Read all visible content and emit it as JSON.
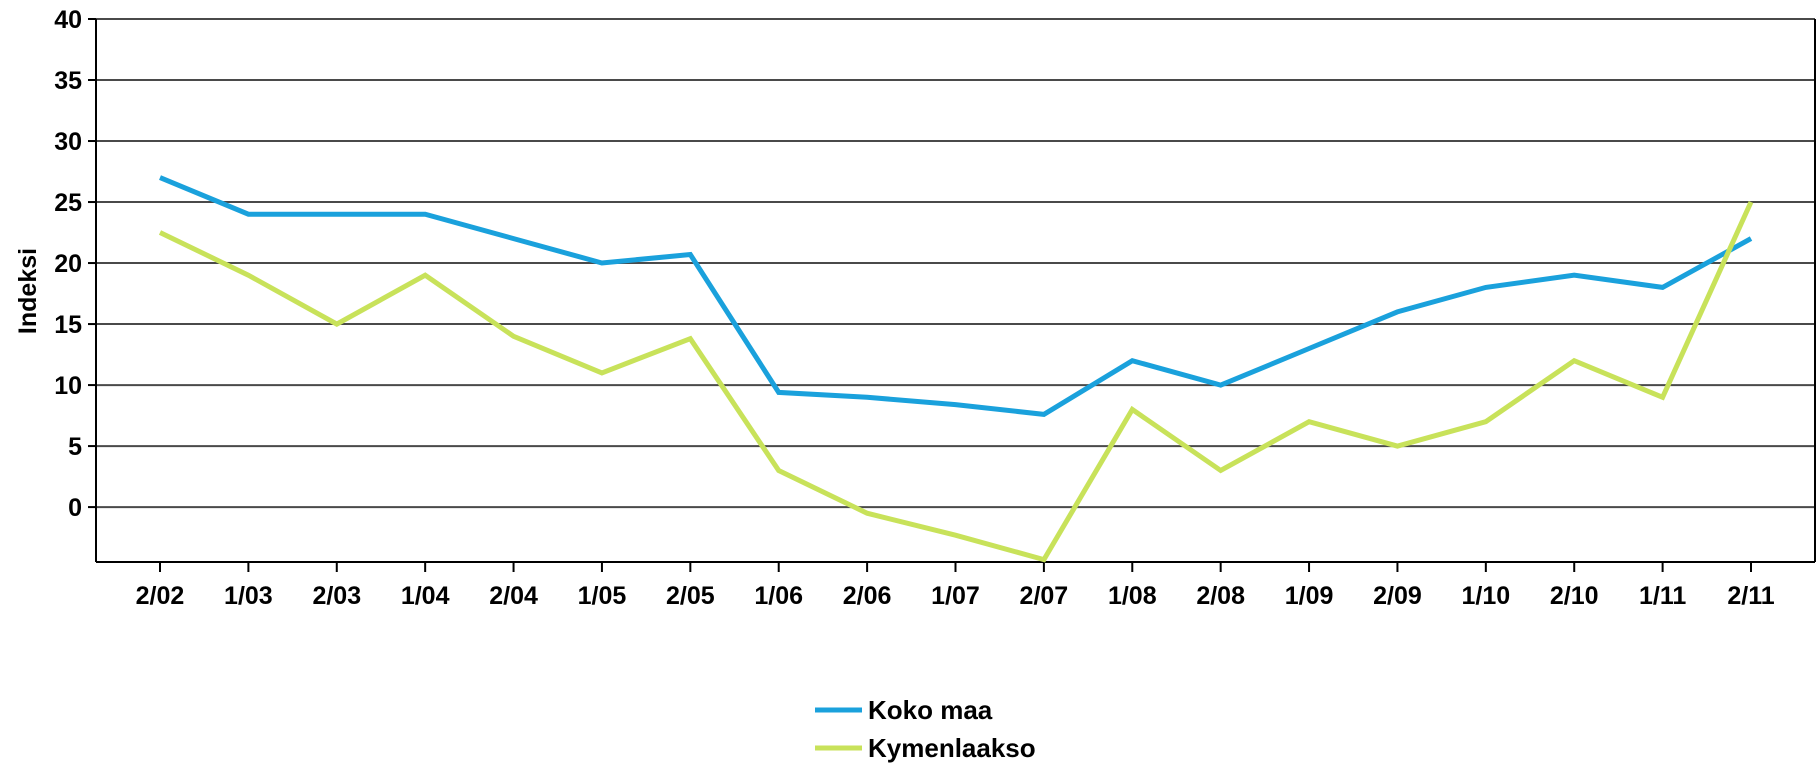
{
  "chart_data": {
    "type": "line",
    "title": "",
    "xlabel": "",
    "ylabel": "Indeksi",
    "ylim": [
      -4.5,
      40
    ],
    "yticks": [
      0,
      5,
      10,
      15,
      20,
      25,
      30,
      35,
      40
    ],
    "grid": true,
    "legend_position": "bottom-center",
    "categories": [
      "2/02",
      "1/03",
      "2/03",
      "1/04",
      "2/04",
      "1/05",
      "2/05",
      "1/06",
      "2/06",
      "1/07",
      "2/07",
      "1/08",
      "2/08",
      "1/09",
      "2/09",
      "1/10",
      "2/10",
      "1/11",
      "2/11"
    ],
    "series": [
      {
        "name": "Koko maa",
        "color": "#1aa1dc",
        "values": [
          27,
          24,
          24,
          24,
          22,
          20,
          20.7,
          9.4,
          9,
          8.4,
          7.6,
          12,
          10,
          13,
          16,
          18,
          19,
          18,
          22
        ]
      },
      {
        "name": "Kymenlaakso",
        "color": "#c8e25a",
        "values": [
          22.5,
          19,
          15,
          19,
          14,
          11,
          13.8,
          3,
          -0.5,
          -2.3,
          -4.3,
          8,
          3,
          7,
          5,
          7,
          12,
          9,
          25
        ]
      }
    ]
  }
}
